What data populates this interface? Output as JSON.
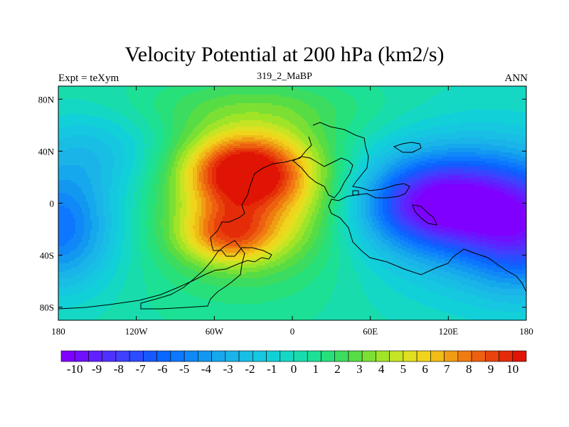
{
  "header": {
    "title": "Velocity Potential at 200 hPa (km2/s)",
    "left_string": "Expt = teXym",
    "center_string": "319_2_MaBP",
    "right_string": "ANN"
  },
  "chart_data": {
    "type": "heatmap",
    "title": "Velocity Potential at 200 hPa (km2/s)",
    "subtitle": "319_2_MaBP",
    "left_annotation": "Expt = teXym",
    "right_annotation": "ANN",
    "x_range": [
      -180,
      180
    ],
    "y_range": [
      -90,
      90
    ],
    "x_ticks": [
      -180,
      -120,
      -60,
      0,
      60,
      120,
      180
    ],
    "x_tick_labels": [
      "180",
      "120W",
      "60W",
      "0",
      "60E",
      "120E",
      "180"
    ],
    "y_ticks": [
      80,
      40,
      0,
      -40,
      -80
    ],
    "y_tick_labels": [
      "80N",
      "40N",
      "0",
      "40S",
      "80S"
    ],
    "features": [
      {
        "lon": -35,
        "lat": 25,
        "value": 10,
        "kind": "maximum"
      },
      {
        "lon": -50,
        "lat": -25,
        "value": 8.5,
        "kind": "maximum"
      },
      {
        "lon": 110,
        "lat": 0,
        "value": -10,
        "kind": "minimum"
      },
      {
        "lon": -180,
        "lat": -20,
        "value": -6,
        "kind": "minimum"
      }
    ],
    "colorbar": {
      "min": -10.5,
      "max": 10.5,
      "step": 0.5,
      "labels": [
        "-10",
        "-9",
        "-8",
        "-7",
        "-6",
        "-5",
        "-4",
        "-3",
        "-2",
        "-1",
        "0",
        "1",
        "2",
        "3",
        "4",
        "5",
        "6",
        "7",
        "8",
        "9",
        "10"
      ],
      "colors": [
        "#7f00ff",
        "#7010ff",
        "#6020ff",
        "#5030ff",
        "#4040ff",
        "#2c4cff",
        "#1858ff",
        "#0a68ff",
        "#0d78ff",
        "#1088f8",
        "#1298f0",
        "#16a8ec",
        "#1ab4e8",
        "#18bee4",
        "#15c8e0",
        "#12d0d8",
        "#14d8c4",
        "#18dcac",
        "#1ce094",
        "#28e07a",
        "#3cdc60",
        "#58dc44",
        "#7ce034",
        "#a0e428",
        "#c4e424",
        "#e0e020",
        "#f0d41c",
        "#f0bc18",
        "#f09c14",
        "#f07c10",
        "#ec6010",
        "#e8440c",
        "#e42c08",
        "#e01404"
      ],
      "colors_note_unused": ""
    }
  }
}
